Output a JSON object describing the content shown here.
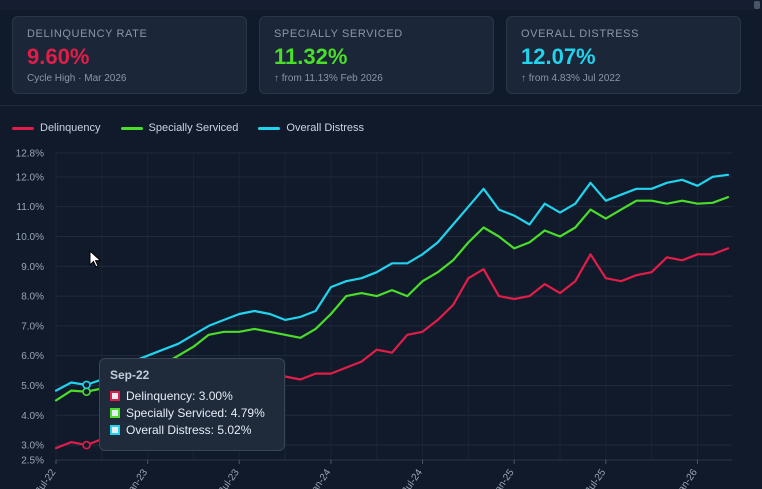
{
  "cards": [
    {
      "label": "DELINQUENCY RATE",
      "value": "9.60%",
      "sub": "Cycle High · Mar 2026",
      "color": "#e11d48"
    },
    {
      "label": "SPECIALLY SERVICED",
      "value": "11.32%",
      "sub": "↑ from 11.13% Feb 2026",
      "color": "#4ade2a"
    },
    {
      "label": "OVERALL DISTRESS",
      "value": "12.07%",
      "sub": "↑ from 4.83% Jul 2022",
      "color": "#22d3ee"
    }
  ],
  "legend": [
    {
      "label": "Delinquency",
      "color": "#e11d48"
    },
    {
      "label": "Specially Serviced",
      "color": "#4ade2a"
    },
    {
      "label": "Overall Distress",
      "color": "#22d3ee"
    }
  ],
  "tooltip": {
    "title": "Sep-22",
    "rows": [
      {
        "text": "Delinquency: 3.00%",
        "color": "#e11d48"
      },
      {
        "text": "Specially Serviced: 4.79%",
        "color": "#4ade2a"
      },
      {
        "text": "Overall Distress: 5.02%",
        "color": "#22d3ee"
      }
    ]
  },
  "chart_data": {
    "type": "line",
    "y_ticks": [
      "2.5%",
      "3.0%",
      "4.0%",
      "5.0%",
      "6.0%",
      "7.0%",
      "8.0%",
      "9.0%",
      "10.0%",
      "11.0%",
      "12.0%",
      "12.8%"
    ],
    "ylim": [
      2.5,
      12.8
    ],
    "x_tick_labels": [
      "Jul-22",
      "Jan-23",
      "Jul-23",
      "Jan-24",
      "Jul-24",
      "Jan-25",
      "Jul-25",
      "Jan-26"
    ],
    "x_tick_positions": [
      0,
      6,
      12,
      18,
      24,
      30,
      36,
      42
    ],
    "x": [
      "Jul-22",
      "Aug-22",
      "Sep-22",
      "Oct-22",
      "Nov-22",
      "Dec-22",
      "Jan-23",
      "Feb-23",
      "Mar-23",
      "Apr-23",
      "May-23",
      "Jun-23",
      "Jul-23",
      "Aug-23",
      "Sep-23",
      "Oct-23",
      "Nov-23",
      "Dec-23",
      "Jan-24",
      "Feb-24",
      "Mar-24",
      "Apr-24",
      "May-24",
      "Jun-24",
      "Jul-24",
      "Aug-24",
      "Sep-24",
      "Oct-24",
      "Nov-24",
      "Dec-24",
      "Jan-25",
      "Feb-25",
      "Mar-25",
      "Apr-25",
      "May-25",
      "Jun-25",
      "Jul-25",
      "Aug-25",
      "Sep-25",
      "Oct-25",
      "Nov-25",
      "Dec-25",
      "Jan-26",
      "Feb-26",
      "Mar-26"
    ],
    "series": [
      {
        "name": "Delinquency",
        "color": "#e11d48",
        "values": [
          2.9,
          3.1,
          3.0,
          3.2,
          3.5,
          3.9,
          4.2,
          4.4,
          4.6,
          4.8,
          4.9,
          5.0,
          5.1,
          5.2,
          5.1,
          5.3,
          5.2,
          5.4,
          5.4,
          5.6,
          5.8,
          6.2,
          6.1,
          6.7,
          6.8,
          7.2,
          7.7,
          8.6,
          8.9,
          8.0,
          7.9,
          8.0,
          8.4,
          8.1,
          8.5,
          9.4,
          8.6,
          8.5,
          8.7,
          8.8,
          9.3,
          9.2,
          9.4,
          9.4,
          9.6
        ]
      },
      {
        "name": "Specially Serviced",
        "color": "#4ade2a",
        "values": [
          4.5,
          4.83,
          4.79,
          4.9,
          5.0,
          5.4,
          5.5,
          5.7,
          6.0,
          6.3,
          6.7,
          6.8,
          6.8,
          6.9,
          6.8,
          6.7,
          6.6,
          6.9,
          7.4,
          8.0,
          8.1,
          8.0,
          8.2,
          8.0,
          8.5,
          8.8,
          9.2,
          9.8,
          10.3,
          10.0,
          9.6,
          9.8,
          10.2,
          10.0,
          10.3,
          10.9,
          10.6,
          10.9,
          11.2,
          11.2,
          11.1,
          11.2,
          11.1,
          11.13,
          11.32
        ]
      },
      {
        "name": "Overall Distress",
        "color": "#22d3ee",
        "values": [
          4.83,
          5.1,
          5.02,
          5.2,
          5.4,
          5.8,
          6.0,
          6.2,
          6.4,
          6.7,
          7.0,
          7.2,
          7.4,
          7.5,
          7.4,
          7.2,
          7.3,
          7.5,
          8.3,
          8.5,
          8.6,
          8.8,
          9.1,
          9.1,
          9.4,
          9.8,
          10.4,
          11.0,
          11.6,
          10.9,
          10.7,
          10.4,
          11.1,
          10.8,
          11.1,
          11.8,
          11.2,
          11.4,
          11.6,
          11.6,
          11.8,
          11.9,
          11.7,
          12.0,
          12.07
        ]
      }
    ]
  }
}
